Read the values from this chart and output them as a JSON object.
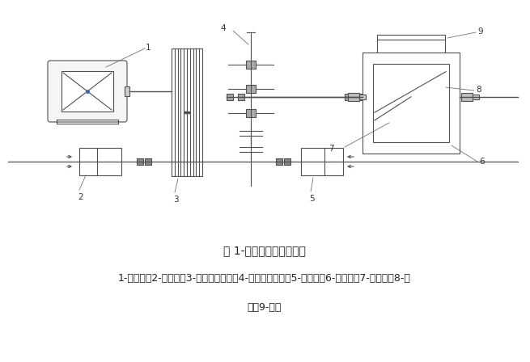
{
  "title": "图 1-冷镦机传动系统简图",
  "caption_line1": "1-电动机；2-离合器；3-皮带传动系统；4-齿轮传动系统；5-制动器；6-下剪架；7-上剪刀；8-剪",
  "caption_line2": "架；9-曲轴",
  "bg_color": "#ffffff",
  "line_color": "#505050",
  "lw": 0.8,
  "title_fontsize": 10,
  "caption_fontsize": 9
}
